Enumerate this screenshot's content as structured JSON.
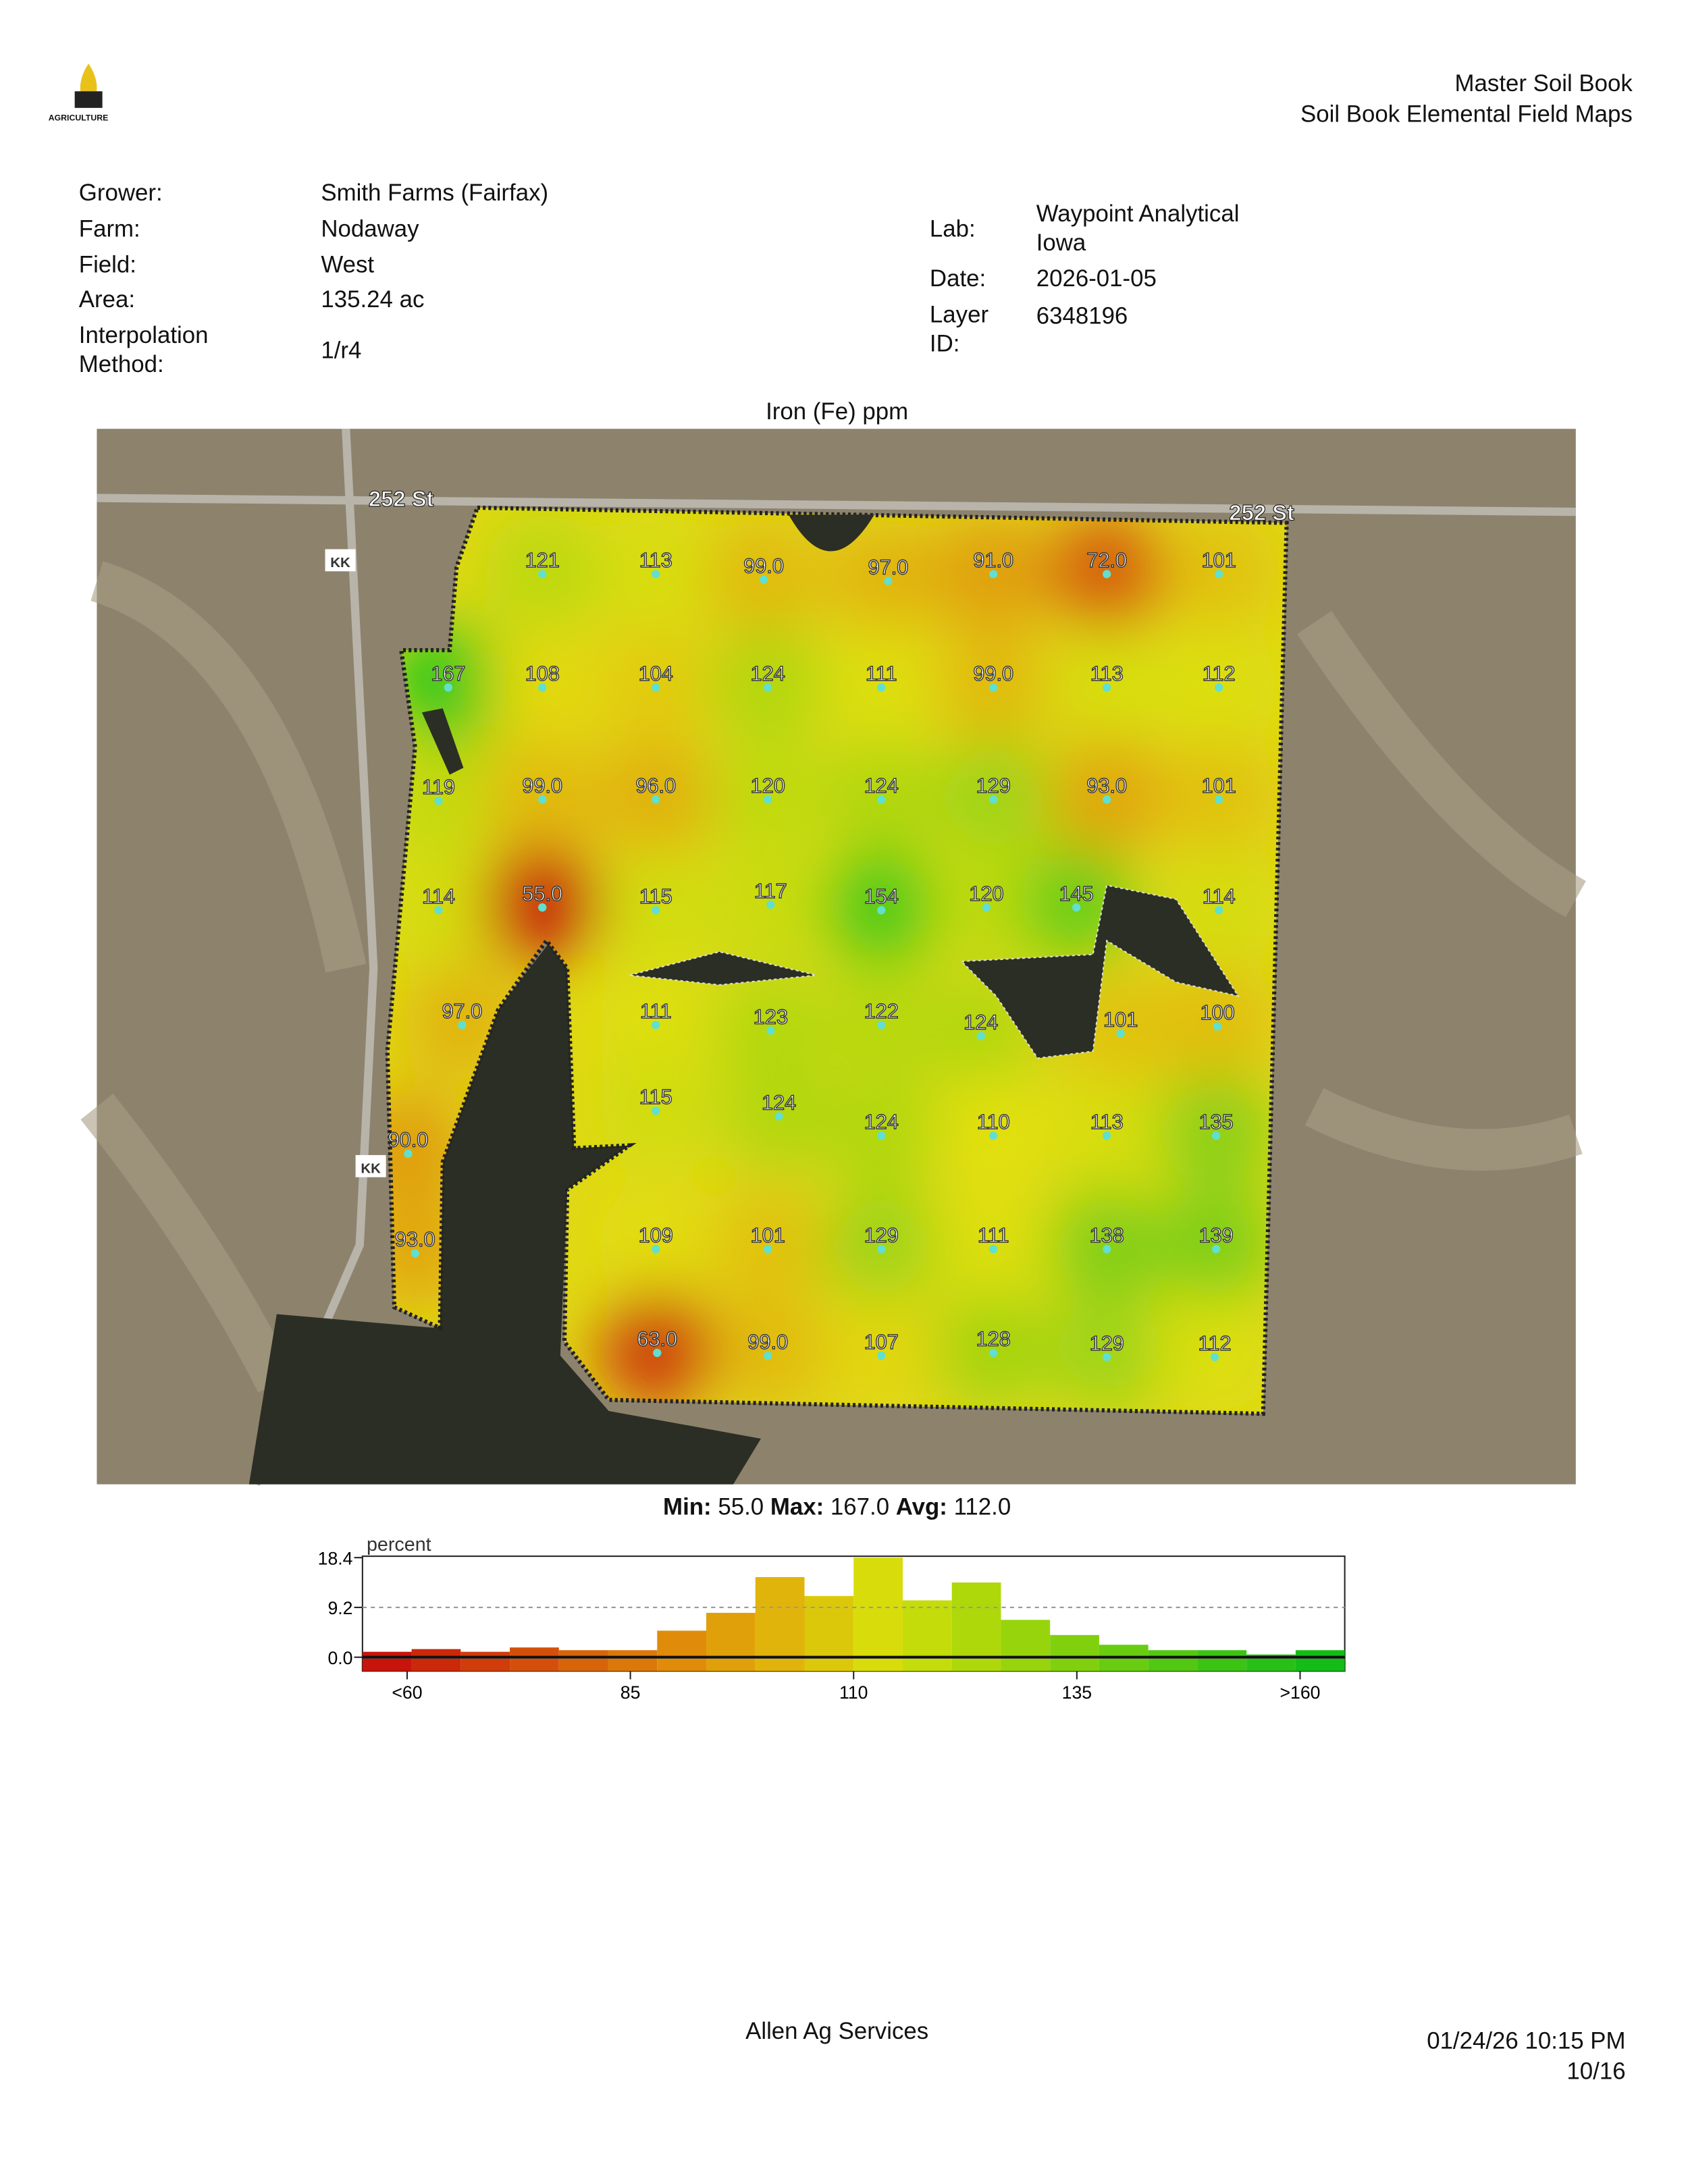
{
  "header": {
    "logo_text": "AGRICULTURE",
    "title": "Master Soil Book",
    "subtitle": "Soil Book Elemental Field Maps"
  },
  "info": {
    "left": [
      [
        "Grower:",
        "Smith Farms (Fairfax)"
      ],
      [
        "Farm:",
        "Nodaway"
      ],
      [
        "Field:",
        "West"
      ],
      [
        "Area:",
        "135.24 ac"
      ],
      [
        "Interpolation Method:",
        "1/r4"
      ]
    ],
    "right": [
      [
        "Lab:",
        "Waypoint Analytical Iowa"
      ],
      [
        "Date:",
        "2026-01-05"
      ],
      [
        "Layer ID:",
        "6348196"
      ]
    ]
  },
  "map": {
    "title": "Iron (Fe) ppm",
    "road_labels": [
      "252 St",
      "252 St",
      "KK",
      "KK"
    ],
    "samples": [
      "121",
      "113",
      "99.0",
      "97.0",
      "91.0",
      "72.0",
      "101",
      "167",
      "108",
      "104",
      "124",
      "111",
      "99.0",
      "113",
      "112",
      "119",
      "99.0",
      "96.0",
      "120",
      "124",
      "129",
      "93.0",
      "101",
      "114",
      "55.0",
      "115",
      "117",
      "154",
      "120",
      "145",
      "114",
      "97.0",
      "111",
      "123",
      "122",
      "124",
      "101",
      "100",
      "90.0",
      "115",
      "124",
      "124",
      "110",
      "113",
      "135",
      "93.0",
      "109",
      "101",
      "129",
      "111",
      "138",
      "139",
      "63.0",
      "99.0",
      "107",
      "128",
      "129",
      "112"
    ],
    "stats": [
      {
        "label": "Min:",
        "value": "55.0"
      },
      {
        "label": "Max:",
        "value": "167.0"
      },
      {
        "label": "Avg:",
        "value": "112.0"
      }
    ]
  },
  "histogram": {
    "axis_label": "percent",
    "values": [
      1.0,
      1.5,
      1.0,
      1.8,
      1.3,
      1.3,
      4.9,
      8.2,
      14.8,
      11.3,
      18.4,
      10.5,
      13.8,
      6.9,
      4.1,
      2.3,
      1.3,
      1.3,
      0.5,
      1.3
    ],
    "bins": [
      55,
      60.5,
      66,
      71.5,
      77,
      82.5,
      88,
      93.5,
      99,
      104.5,
      110,
      115.5,
      121,
      126.5,
      132,
      137.5,
      143,
      148.5,
      154,
      159.5,
      165
    ],
    "colors": [
      "#c8140a",
      "#cc280a",
      "#d03c0a",
      "#d4500a",
      "#d8640a",
      "#dc780a",
      "#e08c0a",
      "#e0a00a",
      "#e0b40a",
      "#dcc80a",
      "#d8dc0a",
      "#c4dc0a",
      "#aed80a",
      "#98d40c",
      "#80d00e",
      "#68cc10",
      "#52c812",
      "#3cc414",
      "#28c016",
      "#14bc18"
    ],
    "xlim": [
      55,
      165
    ],
    "ylim": [
      0,
      18.4
    ],
    "yticks": [
      {
        "value": 0,
        "label": "0.0"
      },
      {
        "value": 9.2,
        "label": "9.2"
      },
      {
        "value": 18.4,
        "label": "18.4"
      }
    ],
    "xticks": [
      {
        "value": 60,
        "label": "<60"
      },
      85,
      110,
      135,
      {
        "value": 160,
        "label": ">160"
      }
    ]
  },
  "footer": {
    "company": "Allen Ag Services",
    "timestamp": "01/24/26 10:15 PM",
    "page": "10/16"
  }
}
